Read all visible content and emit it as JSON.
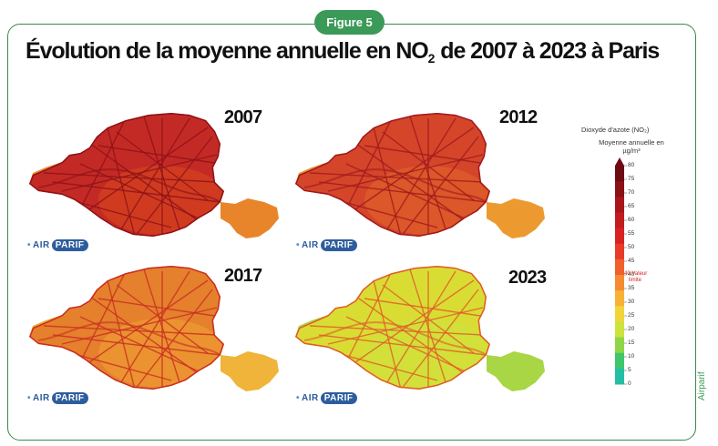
{
  "badge": "Figure 5",
  "title_main": "Évolution de la moyenne annuelle en NO",
  "title_sub": "2",
  "title_rest": " de 2007 à 2023 à Paris",
  "maps": [
    {
      "year": "2007",
      "fill": "#c42a25",
      "fill2": "#d4411f",
      "east": "#e8852a",
      "west": "#e78a2e",
      "road": "#8e1218"
    },
    {
      "year": "2012",
      "fill": "#d4452a",
      "fill2": "#df5d2a",
      "east": "#ec9a30",
      "west": "#e99430",
      "road": "#a01a1c"
    },
    {
      "year": "2017",
      "fill": "#e5802d",
      "fill2": "#ec9a33",
      "east": "#f0b43a",
      "west": "#edaa35",
      "road": "#c82e22"
    },
    {
      "year": "2023",
      "fill": "#d9dd33",
      "fill2": "#cfe03c",
      "east": "#a8d645",
      "west": "#a8d645",
      "road": "#e05a2a"
    }
  ],
  "logo": {
    "air": "AIR",
    "parif": "PARIF"
  },
  "legend": {
    "title": "Dioxyde d'azote (NO₂)",
    "subtitle": "Moyenne annuelle en µg/m³",
    "ticks": [
      "80",
      "75",
      "70",
      "65",
      "60",
      "55",
      "50",
      "45",
      "40",
      "35",
      "30",
      "25",
      "20",
      "15",
      "10",
      "5",
      "0"
    ],
    "limit_line1": "40 Valeur",
    "limit_line2": "limite",
    "colors": [
      "#6e0a12",
      "#8a1115",
      "#a8161a",
      "#c21c1e",
      "#d82222",
      "#e83a28",
      "#f0602c",
      "#f58a30",
      "#f7b235",
      "#f2d538",
      "#cbe33b",
      "#8fd646",
      "#3fc66a",
      "#23bfa5"
    ]
  },
  "credit": "Airparif"
}
